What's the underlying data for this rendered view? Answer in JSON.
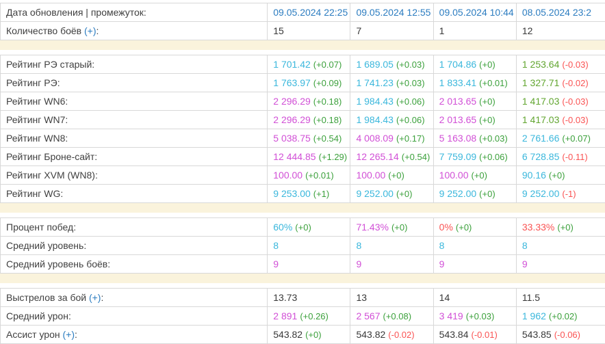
{
  "colors": {
    "border": "#d8d8d8",
    "spacer_bg": "#faf3dc",
    "label": "#3f3f3f",
    "dark": "#383838",
    "blue": "#2b7cc0",
    "cyan": "#3ab7dc",
    "magenta": "#d14fd6",
    "olive": "#61a52f",
    "green": "#3ba03b",
    "red": "#fa5252"
  },
  "table": {
    "sections": [
      {
        "rows": [
          {
            "label": "Дата обновления | промежуток:",
            "cells": [
              {
                "value": "09.05.2024 22:25",
                "value_color": "blue",
                "clickable": true
              },
              {
                "value": "09.05.2024 12:55",
                "value_color": "blue",
                "clickable": true
              },
              {
                "value": "09.05.2024 10:44",
                "value_color": "blue",
                "clickable": true
              },
              {
                "value": "08.05.2024 23:2",
                "value_color": "blue",
                "clickable": true
              }
            ]
          },
          {
            "label": "Количество боёв ",
            "link": "(+)",
            "suffix": ":",
            "cells": [
              {
                "value": "15",
                "value_color": "dark"
              },
              {
                "value": "7",
                "value_color": "dark"
              },
              {
                "value": "1",
                "value_color": "dark"
              },
              {
                "value": "12",
                "value_color": "dark"
              }
            ]
          }
        ]
      },
      {
        "rows": [
          {
            "label": "Рейтинг РЭ старый:",
            "cells": [
              {
                "value": "1 701.42",
                "value_color": "cyan",
                "delta": "(+0.07)",
                "delta_color": "green"
              },
              {
                "value": "1 689.05",
                "value_color": "cyan",
                "delta": "(+0.03)",
                "delta_color": "green"
              },
              {
                "value": "1 704.86",
                "value_color": "cyan",
                "delta": "(+0)",
                "delta_color": "green"
              },
              {
                "value": "1 253.64",
                "value_color": "olive",
                "delta": "(-0.03)",
                "delta_color": "red"
              }
            ]
          },
          {
            "label": "Рейтинг РЭ:",
            "cells": [
              {
                "value": "1 763.97",
                "value_color": "cyan",
                "delta": "(+0.09)",
                "delta_color": "green"
              },
              {
                "value": "1 741.23",
                "value_color": "cyan",
                "delta": "(+0.03)",
                "delta_color": "green"
              },
              {
                "value": "1 833.41",
                "value_color": "cyan",
                "delta": "(+0.01)",
                "delta_color": "green"
              },
              {
                "value": "1 327.71",
                "value_color": "olive",
                "delta": "(-0.02)",
                "delta_color": "red"
              }
            ]
          },
          {
            "label": "Рейтинг WN6:",
            "cells": [
              {
                "value": "2 296.29",
                "value_color": "magenta",
                "delta": "(+0.18)",
                "delta_color": "green"
              },
              {
                "value": "1 984.43",
                "value_color": "cyan",
                "delta": "(+0.06)",
                "delta_color": "green"
              },
              {
                "value": "2 013.65",
                "value_color": "magenta",
                "delta": "(+0)",
                "delta_color": "green"
              },
              {
                "value": "1 417.03",
                "value_color": "olive",
                "delta": "(-0.03)",
                "delta_color": "red"
              }
            ]
          },
          {
            "label": "Рейтинг WN7:",
            "cells": [
              {
                "value": "2 296.29",
                "value_color": "magenta",
                "delta": "(+0.18)",
                "delta_color": "green"
              },
              {
                "value": "1 984.43",
                "value_color": "cyan",
                "delta": "(+0.06)",
                "delta_color": "green"
              },
              {
                "value": "2 013.65",
                "value_color": "magenta",
                "delta": "(+0)",
                "delta_color": "green"
              },
              {
                "value": "1 417.03",
                "value_color": "olive",
                "delta": "(-0.03)",
                "delta_color": "red"
              }
            ]
          },
          {
            "label": "Рейтинг WN8:",
            "cells": [
              {
                "value": "5 038.75",
                "value_color": "magenta",
                "delta": "(+0.54)",
                "delta_color": "green"
              },
              {
                "value": "4 008.09",
                "value_color": "magenta",
                "delta": "(+0.17)",
                "delta_color": "green"
              },
              {
                "value": "5 163.08",
                "value_color": "magenta",
                "delta": "(+0.03)",
                "delta_color": "green"
              },
              {
                "value": "2 761.66",
                "value_color": "cyan",
                "delta": "(+0.07)",
                "delta_color": "green"
              }
            ]
          },
          {
            "label": "Рейтинг Броне-сайт:",
            "cells": [
              {
                "value": "12 444.85",
                "value_color": "magenta",
                "delta": "(+1.29)",
                "delta_color": "green"
              },
              {
                "value": "12 265.14",
                "value_color": "magenta",
                "delta": "(+0.54)",
                "delta_color": "green"
              },
              {
                "value": "7 759.09",
                "value_color": "cyan",
                "delta": "(+0.06)",
                "delta_color": "green"
              },
              {
                "value": "6 728.85",
                "value_color": "cyan",
                "delta": "(-0.11)",
                "delta_color": "red"
              }
            ]
          },
          {
            "label": "Рейтинг XVM (WN8):",
            "cells": [
              {
                "value": "100.00",
                "value_color": "magenta",
                "delta": "(+0.01)",
                "delta_color": "green"
              },
              {
                "value": "100.00",
                "value_color": "magenta",
                "delta": "(+0)",
                "delta_color": "green"
              },
              {
                "value": "100.00",
                "value_color": "magenta",
                "delta": "(+0)",
                "delta_color": "green"
              },
              {
                "value": "90.16",
                "value_color": "cyan",
                "delta": "(+0)",
                "delta_color": "green"
              }
            ]
          },
          {
            "label": "Рейтинг WG:",
            "cells": [
              {
                "value": "9 253.00",
                "value_color": "cyan",
                "delta": "(+1)",
                "delta_color": "green"
              },
              {
                "value": "9 252.00",
                "value_color": "cyan",
                "delta": "(+0)",
                "delta_color": "green"
              },
              {
                "value": "9 252.00",
                "value_color": "cyan",
                "delta": "(+0)",
                "delta_color": "green"
              },
              {
                "value": "9 252.00",
                "value_color": "cyan",
                "delta": "(-1)",
                "delta_color": "red"
              }
            ]
          }
        ]
      },
      {
        "rows": [
          {
            "label": "Процент побед:",
            "cells": [
              {
                "value": "60%",
                "value_color": "cyan",
                "delta": "(+0)",
                "delta_color": "green"
              },
              {
                "value": "71.43%",
                "value_color": "magenta",
                "delta": "(+0)",
                "delta_color": "green"
              },
              {
                "value": "0%",
                "value_color": "red",
                "delta": "(+0)",
                "delta_color": "green"
              },
              {
                "value": "33.33%",
                "value_color": "red",
                "delta": "(+0)",
                "delta_color": "green"
              }
            ]
          },
          {
            "label": "Средний уровень:",
            "cells": [
              {
                "value": "8",
                "value_color": "cyan"
              },
              {
                "value": "8",
                "value_color": "cyan"
              },
              {
                "value": "8",
                "value_color": "cyan"
              },
              {
                "value": "8",
                "value_color": "cyan"
              }
            ]
          },
          {
            "label": "Средний уровень боёв:",
            "cells": [
              {
                "value": "9",
                "value_color": "magenta"
              },
              {
                "value": "9",
                "value_color": "magenta"
              },
              {
                "value": "9",
                "value_color": "magenta"
              },
              {
                "value": "9",
                "value_color": "magenta"
              }
            ]
          }
        ]
      },
      {
        "rows": [
          {
            "label": "Выстрелов за бой ",
            "link": "(+)",
            "suffix": ":",
            "cells": [
              {
                "value": "13.73",
                "value_color": "dark"
              },
              {
                "value": "13",
                "value_color": "dark"
              },
              {
                "value": "14",
                "value_color": "dark"
              },
              {
                "value": "11.5",
                "value_color": "dark"
              }
            ]
          },
          {
            "label": "Средний урон:",
            "cells": [
              {
                "value": "2 891",
                "value_color": "magenta",
                "delta": "(+0.26)",
                "delta_color": "green"
              },
              {
                "value": "2 567",
                "value_color": "magenta",
                "delta": "(+0.08)",
                "delta_color": "green"
              },
              {
                "value": "3 419",
                "value_color": "magenta",
                "delta": "(+0.03)",
                "delta_color": "green"
              },
              {
                "value": "1 962",
                "value_color": "cyan",
                "delta": "(+0.02)",
                "delta_color": "green"
              }
            ]
          },
          {
            "label": "Ассист урон ",
            "link": "(+)",
            "suffix": ":",
            "cells": [
              {
                "value": "543.82",
                "value_color": "dark",
                "delta": "(+0)",
                "delta_color": "green"
              },
              {
                "value": "543.82",
                "value_color": "dark",
                "delta": "(-0.02)",
                "delta_color": "red"
              },
              {
                "value": "543.84",
                "value_color": "dark",
                "delta": "(-0.01)",
                "delta_color": "red"
              },
              {
                "value": "543.85",
                "value_color": "dark",
                "delta": "(-0.06)",
                "delta_color": "red"
              }
            ]
          }
        ]
      }
    ]
  }
}
